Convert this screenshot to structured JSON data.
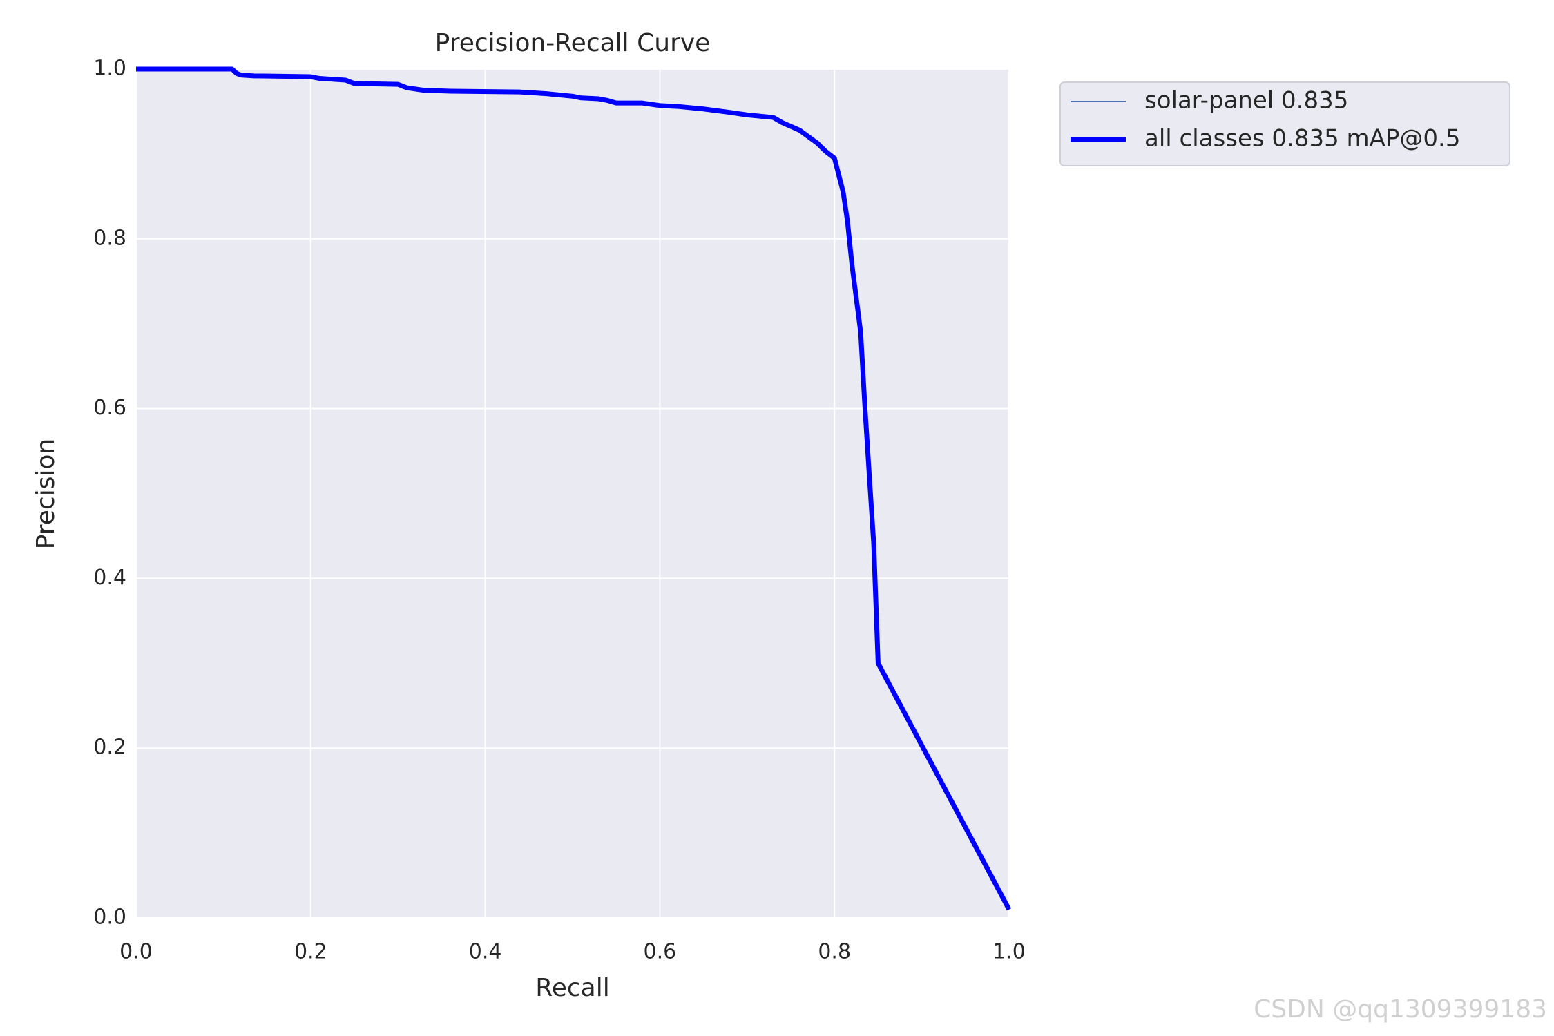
{
  "chart_data": {
    "type": "line",
    "title": "Precision-Recall Curve",
    "x_label": "Recall",
    "y_label": "Precision",
    "xlim": [
      0,
      1
    ],
    "ylim": [
      0,
      1
    ],
    "xticks": [
      {
        "value": 0,
        "label": "0.0"
      },
      0.2,
      0.4,
      0.6,
      0.8,
      {
        "value": 1,
        "label": "1.0"
      }
    ],
    "yticks": [
      {
        "value": 0,
        "label": "0.0"
      },
      0.2,
      0.4,
      0.6,
      0.8,
      {
        "value": 1,
        "label": "1.0"
      }
    ],
    "grid": true,
    "legend": "outside upper right",
    "x": [
      0,
      0.11,
      0.115,
      0.12,
      0.135,
      0.2,
      0.21,
      0.24,
      0.25,
      0.3,
      0.31,
      0.33,
      0.36,
      0.44,
      0.47,
      0.5,
      0.51,
      0.53,
      0.54,
      0.55,
      0.58,
      0.6,
      0.62,
      0.65,
      0.68,
      0.7,
      0.73,
      0.74,
      0.76,
      0.78,
      0.79,
      0.8,
      0.805,
      0.81,
      0.815,
      0.82,
      0.825,
      0.83,
      0.835,
      0.84,
      0.845,
      0.85,
      1.0
    ],
    "series": [
      {
        "name": "solar-panel 0.835",
        "color": "#4c72b0",
        "values": [
          1.0,
          1.0,
          0.995,
          0.993,
          0.992,
          0.991,
          0.989,
          0.987,
          0.983,
          0.982,
          0.978,
          0.975,
          0.974,
          0.973,
          0.971,
          0.968,
          0.966,
          0.965,
          0.963,
          0.96,
          0.96,
          0.957,
          0.956,
          0.953,
          0.949,
          0.946,
          0.943,
          0.937,
          0.928,
          0.913,
          0.903,
          0.895,
          0.875,
          0.855,
          0.82,
          0.77,
          0.73,
          0.69,
          0.6,
          0.52,
          0.44,
          0.3,
          0.01
        ]
      },
      {
        "name": "all classes 0.835 mAP@0.5",
        "color": "#0000ff",
        "values": [
          1.0,
          1.0,
          0.995,
          0.993,
          0.992,
          0.991,
          0.989,
          0.987,
          0.983,
          0.982,
          0.978,
          0.975,
          0.974,
          0.973,
          0.971,
          0.968,
          0.966,
          0.965,
          0.963,
          0.96,
          0.96,
          0.957,
          0.956,
          0.953,
          0.949,
          0.946,
          0.943,
          0.937,
          0.928,
          0.913,
          0.903,
          0.895,
          0.875,
          0.855,
          0.82,
          0.77,
          0.73,
          0.69,
          0.6,
          0.52,
          0.44,
          0.3,
          0.01
        ]
      }
    ],
    "watermark": "CSDN @qq1309399183"
  }
}
